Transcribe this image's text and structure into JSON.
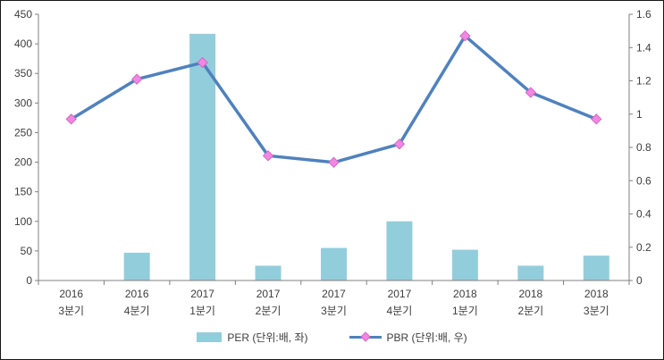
{
  "chart_data": {
    "type": "combo",
    "title": "",
    "grid": "off",
    "legend_position": "bottom",
    "axis_color": "#808080",
    "text_color": "#3d3d3d",
    "categories": [
      {
        "line1": "2016",
        "line2": "3분기"
      },
      {
        "line1": "2016",
        "line2": "4분기"
      },
      {
        "line1": "2017",
        "line2": "1분기"
      },
      {
        "line1": "2017",
        "line2": "2분기"
      },
      {
        "line1": "2017",
        "line2": "3분기"
      },
      {
        "line1": "2017",
        "line2": "4분기"
      },
      {
        "line1": "2018",
        "line2": "1분기"
      },
      {
        "line1": "2018",
        "line2": "2분기"
      },
      {
        "line1": "2018",
        "line2": "3분기"
      }
    ],
    "series": [
      {
        "name": "PER (단위:배, 좌)",
        "type": "bar",
        "axis": "left",
        "color": "#92CDDC",
        "values": [
          0,
          47,
          417,
          25,
          55,
          100,
          52,
          25,
          42
        ]
      },
      {
        "name": "PBR (단위:배, 우)",
        "type": "line",
        "axis": "right",
        "color": "#4F81BD",
        "marker": "diamond",
        "marker_fill": "#F287E3",
        "marker_stroke": "#D468C4",
        "values": [
          0.97,
          1.21,
          1.31,
          0.75,
          0.71,
          0.82,
          1.47,
          1.13,
          0.97
        ]
      }
    ],
    "left_axis": {
      "min": 0,
      "max": 450,
      "ticks": [
        "0",
        "50",
        "100",
        "150",
        "200",
        "250",
        "300",
        "350",
        "400",
        "450"
      ]
    },
    "right_axis": {
      "min": 0,
      "max": 1.6,
      "ticks": [
        "0",
        "0.2",
        "0.4",
        "0.6",
        "0.8",
        "1",
        "1.2",
        "1.4",
        "1.6"
      ]
    }
  }
}
